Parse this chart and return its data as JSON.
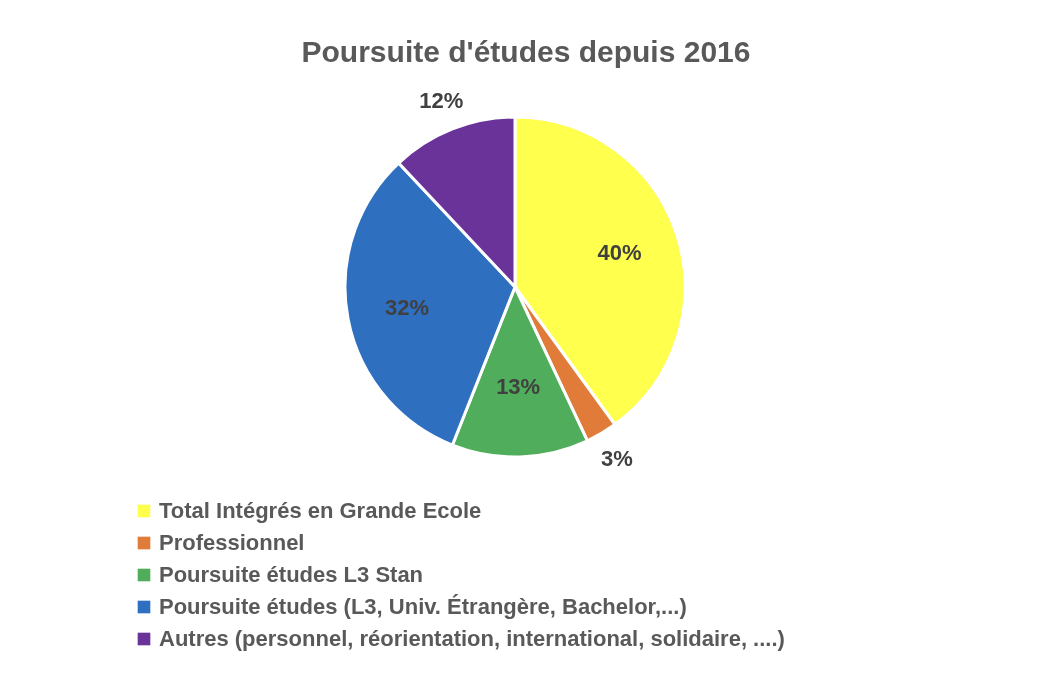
{
  "chart_data": {
    "type": "pie",
    "title": "Poursuite d'études depuis 2016",
    "categories": [
      "Total Intégrés en Grande Ecole",
      "Professionnel",
      "Poursuite études L3 Stan",
      "Poursuite études (L3, Univ. Étrangère, Bachelor,...)",
      "Autres (personnel, réorientation, international, solidaire, ....)"
    ],
    "values": [
      40,
      3,
      13,
      32,
      12
    ],
    "colors": [
      "#ffff4d",
      "#e07b39",
      "#4fad5b",
      "#2e6fc0",
      "#6a339a"
    ],
    "value_labels": [
      "40%",
      "3%",
      "13%",
      "32%",
      "12%"
    ],
    "legend": "bottom"
  }
}
